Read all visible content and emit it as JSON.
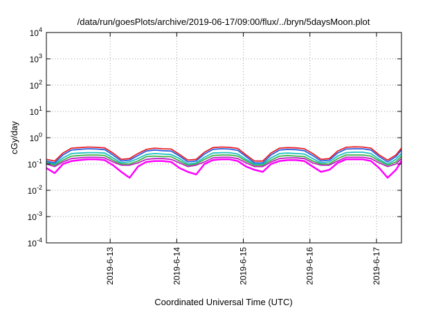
{
  "chart_data": {
    "type": "line",
    "title": "/data/run/goesPlots/archive/2019-06-17/09:00/flux/../bryn/5daysMoon.plot",
    "xlabel": "Coordinated Universal Time (UTC)",
    "ylabel": "cGy/day",
    "yscale": "log",
    "ylim": [
      0.0001,
      10000
    ],
    "y_ticks": [
      {
        "value": 0.0001,
        "base": "10",
        "exp": "-4"
      },
      {
        "value": 0.001,
        "base": "10",
        "exp": "-3"
      },
      {
        "value": 0.01,
        "base": "10",
        "exp": "-2"
      },
      {
        "value": 0.1,
        "base": "10",
        "exp": "-1"
      },
      {
        "value": 1,
        "base": "10",
        "exp": "0"
      },
      {
        "value": 10,
        "base": "10",
        "exp": "1"
      },
      {
        "value": 100,
        "base": "10",
        "exp": "2"
      },
      {
        "value": 1000,
        "base": "10",
        "exp": "3"
      },
      {
        "value": 10000,
        "base": "10",
        "exp": "4"
      }
    ],
    "xlim": [
      "2019-06-12 01:00",
      "2019-06-17 09:00"
    ],
    "x_ticks": [
      "2019-6-13",
      "2019-6-14",
      "2019-6-15",
      "2019-6-16",
      "2019-6-17"
    ],
    "grid": true,
    "legend": "none",
    "series_colors": [
      "#e8202a",
      "#2b5fe0",
      "#1cc0c0",
      "#3cb048",
      "#c020c0",
      "#ff00ff"
    ],
    "x": [
      "2019-06-12 01:00",
      "2019-06-12 04:00",
      "2019-06-12 07:00",
      "2019-06-12 10:00",
      "2019-06-12 13:00",
      "2019-06-12 16:00",
      "2019-06-12 19:00",
      "2019-06-12 22:00",
      "2019-06-13 01:00",
      "2019-06-13 04:00",
      "2019-06-13 07:00",
      "2019-06-13 10:00",
      "2019-06-13 13:00",
      "2019-06-13 16:00",
      "2019-06-13 19:00",
      "2019-06-13 22:00",
      "2019-06-14 01:00",
      "2019-06-14 04:00",
      "2019-06-14 07:00",
      "2019-06-14 10:00",
      "2019-06-14 13:00",
      "2019-06-14 16:00",
      "2019-06-14 19:00",
      "2019-06-14 22:00",
      "2019-06-15 01:00",
      "2019-06-15 04:00",
      "2019-06-15 07:00",
      "2019-06-15 10:00",
      "2019-06-15 13:00",
      "2019-06-15 16:00",
      "2019-06-15 19:00",
      "2019-06-15 22:00",
      "2019-06-16 01:00",
      "2019-06-16 04:00",
      "2019-06-16 07:00",
      "2019-06-16 10:00",
      "2019-06-16 13:00",
      "2019-06-16 16:00",
      "2019-06-16 19:00",
      "2019-06-16 22:00",
      "2019-06-17 01:00",
      "2019-06-17 04:00",
      "2019-06-17 07:00",
      "2019-06-17 09:00"
    ],
    "series": [
      {
        "values": [
          0.15,
          0.13,
          0.26,
          0.4,
          0.42,
          0.44,
          0.43,
          0.41,
          0.26,
          0.15,
          0.16,
          0.25,
          0.36,
          0.4,
          0.38,
          0.37,
          0.23,
          0.14,
          0.15,
          0.28,
          0.42,
          0.44,
          0.43,
          0.39,
          0.22,
          0.13,
          0.13,
          0.26,
          0.4,
          0.42,
          0.41,
          0.38,
          0.25,
          0.15,
          0.16,
          0.31,
          0.43,
          0.45,
          0.44,
          0.4,
          0.22,
          0.14,
          0.22,
          0.4
        ]
      },
      {
        "values": [
          0.13,
          0.11,
          0.22,
          0.34,
          0.36,
          0.38,
          0.37,
          0.35,
          0.22,
          0.13,
          0.14,
          0.21,
          0.31,
          0.34,
          0.32,
          0.31,
          0.2,
          0.12,
          0.13,
          0.24,
          0.36,
          0.38,
          0.37,
          0.33,
          0.19,
          0.11,
          0.11,
          0.22,
          0.34,
          0.36,
          0.35,
          0.32,
          0.21,
          0.13,
          0.14,
          0.26,
          0.37,
          0.38,
          0.38,
          0.34,
          0.19,
          0.12,
          0.19,
          0.34
        ]
      },
      {
        "values": [
          0.12,
          0.1,
          0.17,
          0.25,
          0.26,
          0.27,
          0.27,
          0.26,
          0.17,
          0.11,
          0.12,
          0.16,
          0.23,
          0.25,
          0.24,
          0.23,
          0.16,
          0.1,
          0.11,
          0.18,
          0.26,
          0.27,
          0.27,
          0.24,
          0.15,
          0.1,
          0.1,
          0.17,
          0.25,
          0.26,
          0.25,
          0.24,
          0.16,
          0.11,
          0.12,
          0.2,
          0.27,
          0.28,
          0.28,
          0.25,
          0.15,
          0.1,
          0.15,
          0.25
        ]
      },
      {
        "values": [
          0.11,
          0.09,
          0.14,
          0.2,
          0.21,
          0.22,
          0.22,
          0.21,
          0.14,
          0.1,
          0.1,
          0.13,
          0.19,
          0.2,
          0.19,
          0.19,
          0.13,
          0.09,
          0.1,
          0.15,
          0.21,
          0.22,
          0.22,
          0.2,
          0.13,
          0.09,
          0.09,
          0.14,
          0.2,
          0.21,
          0.2,
          0.19,
          0.13,
          0.1,
          0.1,
          0.16,
          0.22,
          0.22,
          0.22,
          0.2,
          0.13,
          0.09,
          0.12,
          0.2
        ]
      },
      {
        "values": [
          0.1,
          0.08,
          0.12,
          0.16,
          0.17,
          0.18,
          0.18,
          0.17,
          0.12,
          0.09,
          0.09,
          0.11,
          0.15,
          0.16,
          0.16,
          0.15,
          0.11,
          0.08,
          0.09,
          0.12,
          0.17,
          0.18,
          0.18,
          0.16,
          0.11,
          0.08,
          0.08,
          0.12,
          0.16,
          0.17,
          0.17,
          0.16,
          0.11,
          0.09,
          0.09,
          0.13,
          0.18,
          0.18,
          0.18,
          0.16,
          0.11,
          0.08,
          0.1,
          0.16
        ]
      },
      {
        "values": [
          0.07,
          0.045,
          0.1,
          0.13,
          0.14,
          0.15,
          0.15,
          0.14,
          0.09,
          0.05,
          0.03,
          0.08,
          0.12,
          0.13,
          0.13,
          0.12,
          0.07,
          0.05,
          0.04,
          0.1,
          0.14,
          0.15,
          0.15,
          0.13,
          0.08,
          0.06,
          0.05,
          0.1,
          0.13,
          0.14,
          0.14,
          0.13,
          0.08,
          0.05,
          0.06,
          0.11,
          0.15,
          0.15,
          0.15,
          0.13,
          0.07,
          0.03,
          0.06,
          0.13
        ]
      }
    ]
  }
}
